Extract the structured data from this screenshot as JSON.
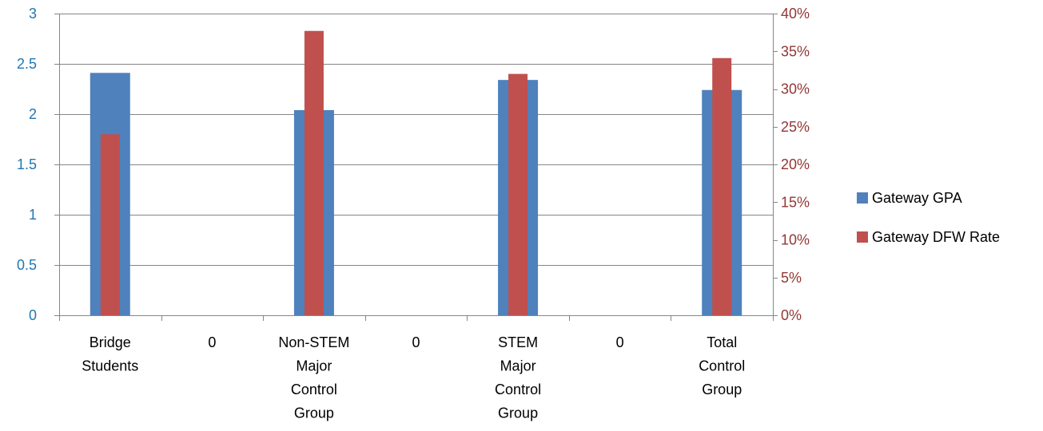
{
  "chart_data": {
    "type": "bar",
    "categories": [
      [
        "Bridge",
        "Students"
      ],
      [
        "0"
      ],
      [
        "Non-STEM",
        "Major",
        "Control",
        "Group"
      ],
      [
        "0"
      ],
      [
        "STEM",
        "Major",
        "Control",
        "Group"
      ],
      [
        "0"
      ],
      [
        "Total",
        "Control",
        "Group"
      ]
    ],
    "series": [
      {
        "name": "Gateway GPA",
        "axis": "left",
        "color": "#4f81bd",
        "values": [
          2.41,
          null,
          2.04,
          null,
          2.34,
          null,
          2.24
        ]
      },
      {
        "name": "Gateway DFW Rate",
        "axis": "right",
        "color": "#c0504d",
        "values": [
          0.24,
          null,
          0.377,
          null,
          0.32,
          null,
          0.341
        ]
      }
    ],
    "y_left": {
      "lim": [
        0,
        3
      ],
      "ticks": [
        0,
        0.5,
        1,
        1.5,
        2,
        2.5,
        3
      ],
      "tick_labels": [
        "0",
        "0.5",
        "1",
        "1.5",
        "2",
        "2.5",
        "3"
      ],
      "color": "#1f77b4"
    },
    "y_right": {
      "lim": [
        0,
        0.4
      ],
      "ticks": [
        0,
        0.05,
        0.1,
        0.15,
        0.2,
        0.25,
        0.3,
        0.35,
        0.4
      ],
      "tick_labels": [
        "0%",
        "5%",
        "10%",
        "15%",
        "20%",
        "25%",
        "30%",
        "35%",
        "40%"
      ],
      "color": "#943634"
    },
    "gridlines": true,
    "legend": "right"
  }
}
